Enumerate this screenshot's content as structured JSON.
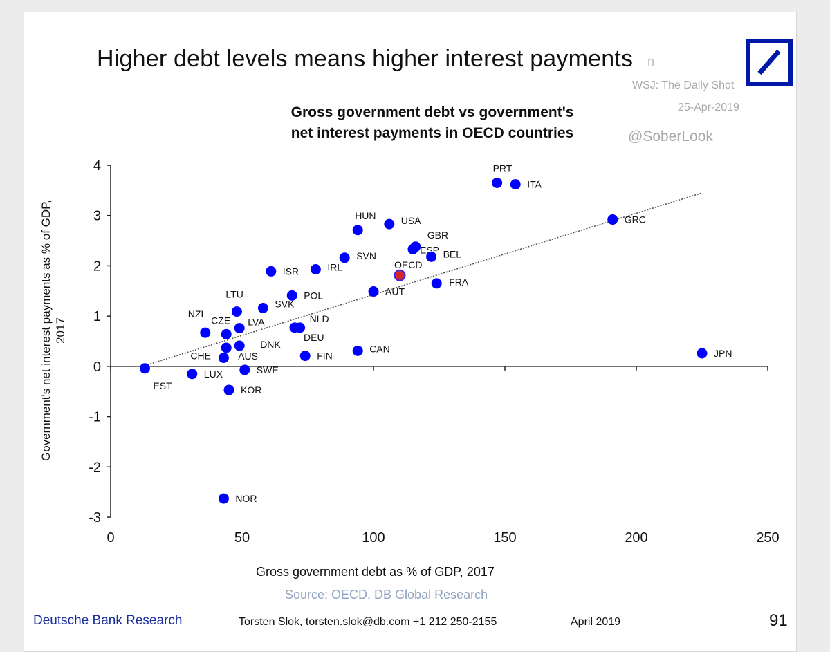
{
  "title": "Higher debt levels means higher interest payments",
  "watermark": {
    "attribution_partial": "n",
    "source_line": "WSJ: The Daily Shot",
    "date": "25-Apr-2019",
    "handle": "@SoberLook"
  },
  "logo_icon": "deutsche-bank-slash-logo",
  "brand_color": "#0018a8",
  "footer": {
    "brand": "Deutsche Bank Research",
    "author": "Torsten Slok, torsten.slok@db.com  +1 212 250-2155",
    "date": "April 2019",
    "page": "91"
  },
  "source": "Source: OECD, DB Global Research",
  "chart_data": {
    "type": "scatter",
    "title": "Gross government debt vs government's net interest payments in OECD countries",
    "title_lines": [
      "Gross government debt vs government's",
      "net interest payments in OECD countries"
    ],
    "xlabel": "Gross government debt as % of GDP, 2017",
    "ylabel_lines": [
      "Government's net interest payments as % of GDP,",
      "2017"
    ],
    "xlim": [
      0,
      250
    ],
    "ylim": [
      -3,
      4
    ],
    "xticks": [
      "0",
      "50",
      "100",
      "150",
      "200",
      "250"
    ],
    "yticks": [
      "4",
      "3",
      "2",
      "1",
      "0",
      "-1",
      "-2",
      "-3"
    ],
    "grid": false,
    "point_color": "#0000ff",
    "highlight_color": "#d9262b",
    "trendline": {
      "style": "dotted",
      "from": [
        12,
        0.0
      ],
      "to": [
        225,
        3.45
      ]
    },
    "points": [
      {
        "label": "PRT",
        "x": 147,
        "y": 3.65
      },
      {
        "label": "ITA",
        "x": 154,
        "y": 3.62
      },
      {
        "label": "GRC",
        "x": 191,
        "y": 2.92
      },
      {
        "label": "HUN",
        "x": 94,
        "y": 2.71
      },
      {
        "label": "USA",
        "x": 106,
        "y": 2.83
      },
      {
        "label": "GBR",
        "x": 116,
        "y": 2.38
      },
      {
        "label": "ESP",
        "x": 115,
        "y": 2.33
      },
      {
        "label": "BEL",
        "x": 122,
        "y": 2.18
      },
      {
        "label": "SVN",
        "x": 89,
        "y": 2.16
      },
      {
        "label": "IRL",
        "x": 78,
        "y": 1.93
      },
      {
        "label": "ISR",
        "x": 61,
        "y": 1.89
      },
      {
        "label": "OECD",
        "x": 110,
        "y": 1.81,
        "highlight": true
      },
      {
        "label": "FRA",
        "x": 124,
        "y": 1.65
      },
      {
        "label": "AUT",
        "x": 100,
        "y": 1.49
      },
      {
        "label": "POL",
        "x": 69,
        "y": 1.41
      },
      {
        "label": "SVK",
        "x": 58,
        "y": 1.16
      },
      {
        "label": "LTU",
        "x": 48,
        "y": 1.09
      },
      {
        "label": "NZL",
        "x": 36,
        "y": 0.67
      },
      {
        "label": "CZE",
        "x": 44,
        "y": 0.64
      },
      {
        "label": "LVA",
        "x": 49,
        "y": 0.76
      },
      {
        "label": "NLD",
        "x": 72,
        "y": 0.77
      },
      {
        "label": "DEU",
        "x": 70,
        "y": 0.77
      },
      {
        "label": "DNK",
        "x": 49,
        "y": 0.41
      },
      {
        "label": "AUS",
        "x": 44,
        "y": 0.37
      },
      {
        "label": "CHE",
        "x": 43,
        "y": 0.17
      },
      {
        "label": "FIN",
        "x": 74,
        "y": 0.21
      },
      {
        "label": "CAN",
        "x": 94,
        "y": 0.31
      },
      {
        "label": "JPN",
        "x": 225,
        "y": 0.26
      },
      {
        "label": "EST",
        "x": 13,
        "y": -0.04
      },
      {
        "label": "SWE",
        "x": 51,
        "y": -0.07
      },
      {
        "label": "LUX",
        "x": 31,
        "y": -0.15
      },
      {
        "label": "KOR",
        "x": 45,
        "y": -0.47
      },
      {
        "label": "NOR",
        "x": 43,
        "y": -2.63
      }
    ]
  }
}
